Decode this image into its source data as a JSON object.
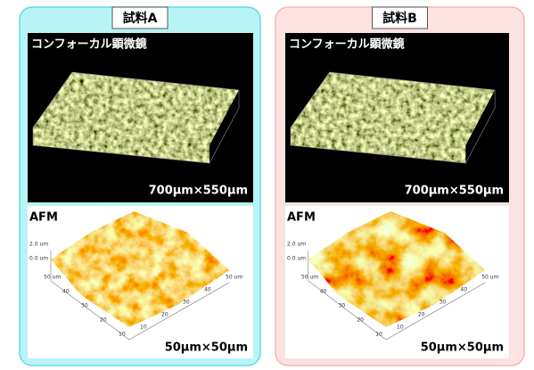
{
  "panels": [
    {
      "title": "試料A",
      "confocal": {
        "label": "コンフォーカル顕微鏡",
        "size": "700μm×550μm"
      },
      "afm": {
        "label": "AFM",
        "size": "50μm×50μm",
        "z_ticks": [
          "2.0 um",
          "0.0 um"
        ],
        "x_ticks": [
          "50 um",
          "40",
          "30",
          "20",
          "10"
        ],
        "y_ticks": [
          "50 um",
          "40",
          "30",
          "20",
          "10"
        ]
      }
    },
    {
      "title": "試料B",
      "confocal": {
        "label": "コンフォーカル顕微鏡",
        "size": "700μm×550μm"
      },
      "afm": {
        "label": "AFM",
        "size": "50μm×50μm",
        "z_ticks": [
          "2.0 um",
          "0.0 um"
        ],
        "x_ticks": [
          "50 um",
          "40",
          "30",
          "20",
          "10"
        ],
        "y_ticks": [
          "50 um",
          "40",
          "30",
          "20",
          "10"
        ]
      }
    }
  ]
}
